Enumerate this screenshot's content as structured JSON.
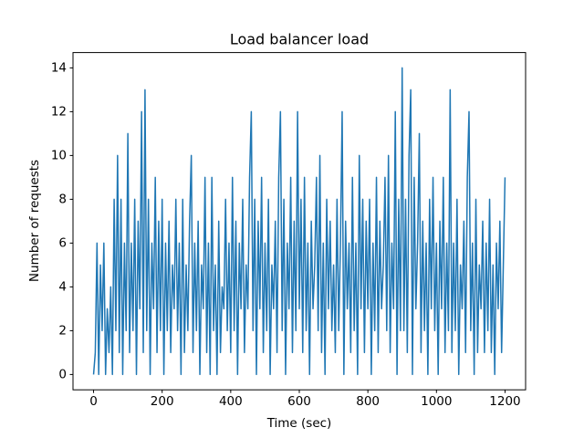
{
  "chart_data": {
    "type": "line",
    "title": "Load balancer load",
    "xlabel": "Time (sec)",
    "ylabel": "Number of requests",
    "x": [
      0,
      5,
      10,
      15,
      20,
      25,
      30,
      35,
      40,
      45,
      50,
      55,
      60,
      65,
      70,
      75,
      80,
      85,
      90,
      95,
      100,
      105,
      110,
      115,
      120,
      125,
      130,
      135,
      140,
      145,
      150,
      155,
      160,
      165,
      170,
      175,
      180,
      185,
      190,
      195,
      200,
      205,
      210,
      215,
      220,
      225,
      230,
      235,
      240,
      245,
      250,
      255,
      260,
      265,
      270,
      275,
      280,
      285,
      290,
      295,
      300,
      305,
      310,
      315,
      320,
      325,
      330,
      335,
      340,
      345,
      350,
      355,
      360,
      365,
      370,
      375,
      380,
      385,
      390,
      395,
      400,
      405,
      410,
      415,
      420,
      425,
      430,
      435,
      440,
      445,
      450,
      455,
      460,
      465,
      470,
      475,
      480,
      485,
      490,
      495,
      500,
      505,
      510,
      515,
      520,
      525,
      530,
      535,
      540,
      545,
      550,
      555,
      560,
      565,
      570,
      575,
      580,
      585,
      590,
      595,
      600,
      605,
      610,
      615,
      620,
      625,
      630,
      635,
      640,
      645,
      650,
      655,
      660,
      665,
      670,
      675,
      680,
      685,
      690,
      695,
      700,
      705,
      710,
      715,
      720,
      725,
      730,
      735,
      740,
      745,
      750,
      755,
      760,
      765,
      770,
      775,
      780,
      785,
      790,
      795,
      800,
      805,
      810,
      815,
      820,
      825,
      830,
      835,
      840,
      845,
      850,
      855,
      860,
      865,
      870,
      875,
      880,
      885,
      890,
      895,
      900,
      905,
      910,
      915,
      920,
      925,
      930,
      935,
      940,
      945,
      950,
      955,
      960,
      965,
      970,
      975,
      980,
      985,
      990,
      995,
      1000,
      1005,
      1010,
      1015,
      1020,
      1025,
      1030,
      1035,
      1040,
      1045,
      1050,
      1055,
      1060,
      1065,
      1070,
      1075,
      1080,
      1085,
      1090,
      1095,
      1100,
      1105,
      1110,
      1115,
      1120,
      1125,
      1130,
      1135,
      1140,
      1145,
      1150,
      1155,
      1160,
      1165,
      1170,
      1175,
      1180,
      1185,
      1190,
      1195,
      1200
    ],
    "series": [
      {
        "color": "#1f77b4",
        "values": [
          0,
          1,
          6,
          0,
          5,
          2,
          6,
          0,
          3,
          1,
          4,
          0,
          8,
          2,
          10,
          1,
          8,
          0,
          6,
          2,
          11,
          1,
          6,
          2,
          8,
          0,
          7,
          3,
          12,
          1,
          13,
          2,
          8,
          0,
          6,
          3,
          9,
          1,
          7,
          2,
          8,
          0,
          6,
          2,
          7,
          1,
          5,
          3,
          8,
          2,
          6,
          0,
          8,
          1,
          5,
          2,
          7,
          10,
          1,
          6,
          2,
          7,
          0,
          5,
          3,
          9,
          1,
          6,
          0,
          9,
          2,
          5,
          0,
          7,
          1,
          4,
          3,
          8,
          2,
          6,
          1,
          9,
          2,
          7,
          0,
          6,
          3,
          8,
          1,
          5,
          3,
          9,
          12,
          2,
          8,
          0,
          7,
          3,
          9,
          1,
          6,
          2,
          8,
          0,
          5,
          3,
          7,
          1,
          9,
          12,
          2,
          8,
          0,
          6,
          3,
          9,
          1,
          7,
          2,
          12,
          3,
          8,
          1,
          9,
          2,
          6,
          0,
          7,
          3,
          5,
          9,
          2,
          10,
          1,
          6,
          0,
          8,
          3,
          7,
          2,
          5,
          1,
          8,
          2,
          6,
          12,
          0,
          7,
          3,
          6,
          1,
          9,
          2,
          6,
          0,
          10,
          3,
          8,
          1,
          7,
          3,
          8,
          0,
          6,
          2,
          9,
          1,
          7,
          3,
          5,
          9,
          2,
          10,
          1,
          6,
          3,
          12,
          0,
          8,
          2,
          14,
          2,
          8,
          1,
          10,
          13,
          0,
          9,
          3,
          6,
          11,
          1,
          7,
          2,
          6,
          0,
          8,
          3,
          9,
          2,
          6,
          0,
          7,
          3,
          9,
          1,
          6,
          2,
          13,
          1,
          6,
          2,
          8,
          0,
          5,
          3,
          7,
          1,
          9,
          12,
          2,
          6,
          0,
          8,
          1,
          5,
          3,
          7,
          1,
          6,
          2,
          8,
          1,
          5,
          0,
          6,
          3,
          7,
          1,
          5,
          9
        ]
      }
    ],
    "xlim": [
      -60,
      1260
    ],
    "ylim": [
      -0.7,
      14.7
    ],
    "xticks": [
      0,
      200,
      400,
      600,
      800,
      1000,
      1200
    ],
    "yticks": [
      0,
      2,
      4,
      6,
      8,
      10,
      12,
      14
    ]
  }
}
